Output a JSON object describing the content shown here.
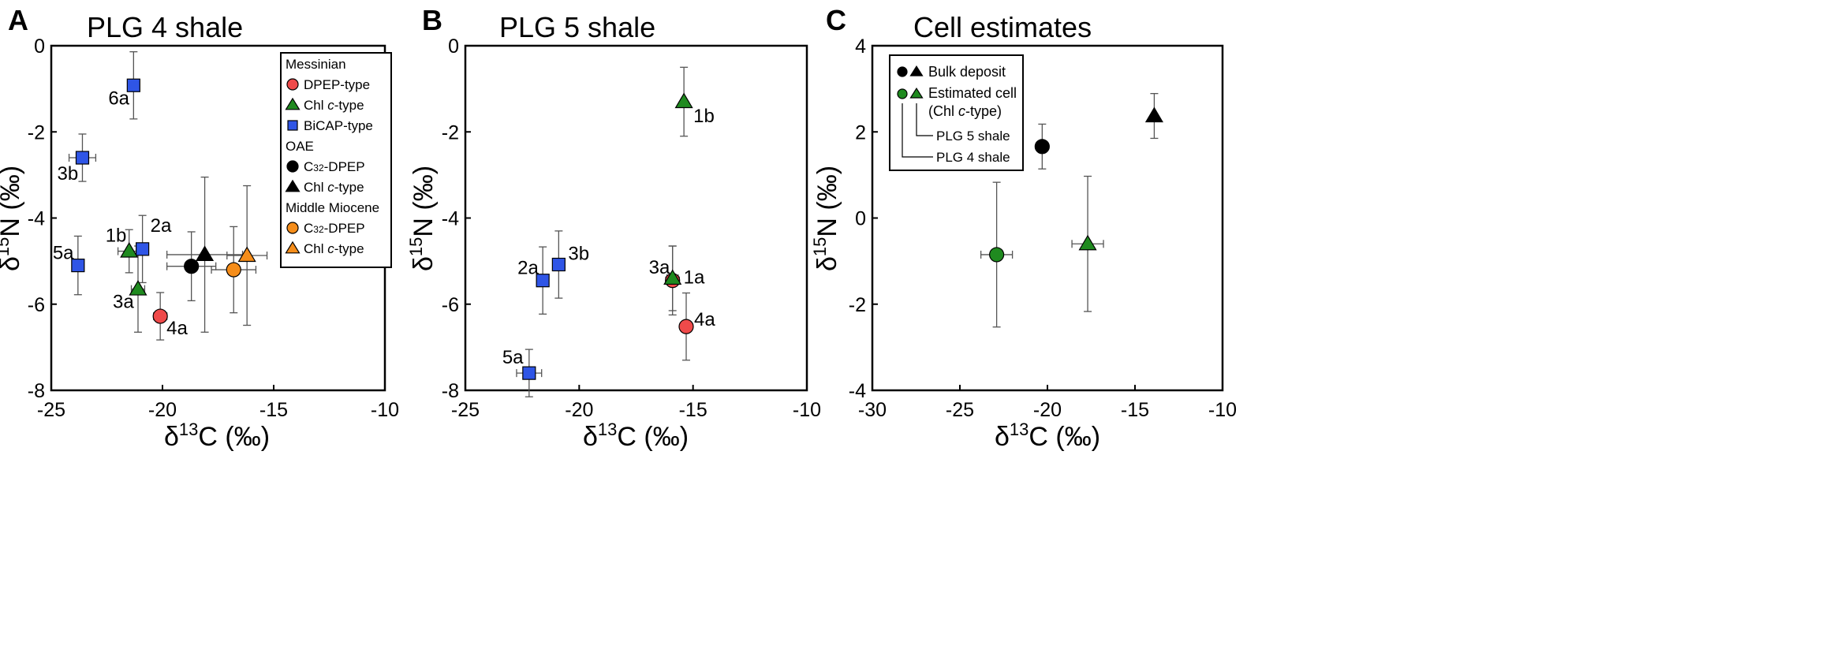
{
  "colors": {
    "red": "#ef4a4a",
    "green": "#1f8a1f",
    "blue": "#2f55e6",
    "black": "#000000",
    "orange": "#f58d1a",
    "errorbar": "#555555"
  },
  "chart_data": [
    {
      "panel": "A",
      "type": "scatter",
      "title": "PLG 4 shale",
      "xlabel": "δ13C (‰)",
      "ylabel": "δ15N (‰)",
      "xlim": [
        -25,
        -10
      ],
      "ylim": [
        -8,
        0
      ],
      "xticks": [
        -25,
        -20,
        -15,
        -10
      ],
      "yticks": [
        0,
        -2,
        -4,
        -6,
        -8
      ],
      "xtick_labels": [
        "-25",
        "-20",
        "-15",
        "-10"
      ],
      "ytick_labels": [
        "0",
        "-2",
        "-4",
        "-6",
        "-8"
      ],
      "points": [
        {
          "label": "6a",
          "group": "Messinian",
          "type": "BiCAP-type",
          "x": -21.3,
          "y": -0.92,
          "xerr": 0.0,
          "yerr": 0.78,
          "marker": "square",
          "color": "blue"
        },
        {
          "label": "3b",
          "group": "Messinian",
          "type": "BiCAP-type",
          "x": -23.6,
          "y": -2.6,
          "xerr": 0.6,
          "yerr": 0.55,
          "marker": "square",
          "color": "blue"
        },
        {
          "label": "5a",
          "group": "Messinian",
          "type": "BiCAP-type",
          "x": -23.8,
          "y": -5.1,
          "xerr": 0.0,
          "yerr": 0.68,
          "marker": "square",
          "color": "blue"
        },
        {
          "label": "2a",
          "group": "Messinian",
          "type": "BiCAP-type",
          "x": -20.9,
          "y": -4.72,
          "xerr": 0.0,
          "yerr": 0.78,
          "marker": "square",
          "color": "blue"
        },
        {
          "label": "1b",
          "group": "Messinian",
          "type": "Chl c-type",
          "x": -21.5,
          "y": -4.77,
          "xerr": 0.5,
          "yerr": 0.5,
          "marker": "triangle",
          "color": "green"
        },
        {
          "label": "3a",
          "group": "Messinian",
          "type": "Chl c-type",
          "x": -21.1,
          "y": -5.65,
          "xerr": 0.3,
          "yerr": 1.0,
          "marker": "triangle",
          "color": "green"
        },
        {
          "label": "4a",
          "group": "Messinian",
          "type": "DPEP-type",
          "x": -20.1,
          "y": -6.28,
          "xerr": 0.3,
          "yerr": 0.55,
          "marker": "circle",
          "color": "red"
        },
        {
          "label": "",
          "group": "OAE",
          "type": "C32-DPEP",
          "x": -18.7,
          "y": -5.12,
          "xerr": 1.1,
          "yerr": 0.8,
          "marker": "circle",
          "color": "black"
        },
        {
          "label": "",
          "group": "OAE",
          "type": "Chl c-type",
          "x": -18.1,
          "y": -4.85,
          "xerr": 1.7,
          "yerr": 1.8,
          "marker": "triangle",
          "color": "black"
        },
        {
          "label": "",
          "group": "Middle Miocene",
          "type": "C32-DPEP",
          "x": -16.8,
          "y": -5.2,
          "xerr": 1.0,
          "yerr": 1.0,
          "marker": "circle",
          "color": "orange"
        },
        {
          "label": "",
          "group": "Middle Miocene",
          "type": "Chl c-type",
          "x": -16.2,
          "y": -4.87,
          "xerr": 0.9,
          "yerr": 1.62,
          "marker": "triangle",
          "color": "orange"
        }
      ],
      "legend": {
        "position": "top-right",
        "entries": [
          {
            "kind": "header",
            "text": "Messinian"
          },
          {
            "kind": "item",
            "marker": "circle",
            "color": "red",
            "text": "DPEP-type"
          },
          {
            "kind": "item",
            "marker": "triangle",
            "color": "green",
            "pre": "Chl ",
            "italic": "c",
            "post": "-type"
          },
          {
            "kind": "item",
            "marker": "square",
            "color": "blue",
            "text": "BiCAP-type"
          },
          {
            "kind": "header",
            "text": "OAE"
          },
          {
            "kind": "item",
            "marker": "circle",
            "color": "black",
            "pre": "C",
            "sub": "32",
            "post": "-DPEP"
          },
          {
            "kind": "item",
            "marker": "triangle",
            "color": "black",
            "pre": "Chl ",
            "italic": "c",
            "post": "-type"
          },
          {
            "kind": "header",
            "text": "Middle Miocene"
          },
          {
            "kind": "item",
            "marker": "circle",
            "color": "orange",
            "pre": "C",
            "sub": "32",
            "post": "-DPEP"
          },
          {
            "kind": "item",
            "marker": "triangle",
            "color": "orange",
            "pre": "Chl ",
            "italic": "c",
            "post": "-type"
          }
        ]
      }
    },
    {
      "panel": "B",
      "type": "scatter",
      "title": "PLG 5 shale",
      "xlabel": "δ13C (‰)",
      "ylabel": "δ15N (‰)",
      "xlim": [
        -25,
        -10
      ],
      "ylim": [
        -8,
        0
      ],
      "xticks": [
        -25,
        -20,
        -15,
        -10
      ],
      "yticks": [
        0,
        -2,
        -4,
        -6,
        -8
      ],
      "xtick_labels": [
        "-25",
        "-20",
        "-15",
        "-10"
      ],
      "ytick_labels": [
        "0",
        "-2",
        "-4",
        "-6",
        "-8"
      ],
      "points": [
        {
          "label": "1b",
          "group": "Messinian",
          "type": "Chl c-type",
          "x": -15.4,
          "y": -1.3,
          "xerr": 0.0,
          "yerr": 0.8,
          "marker": "triangle",
          "color": "green"
        },
        {
          "label": "3b",
          "group": "Messinian",
          "type": "BiCAP-type",
          "x": -20.9,
          "y": -5.08,
          "xerr": 0.0,
          "yerr": 0.78,
          "marker": "square",
          "color": "blue"
        },
        {
          "label": "2a",
          "group": "Messinian",
          "type": "BiCAP-type",
          "x": -21.6,
          "y": -5.45,
          "xerr": 0.0,
          "yerr": 0.78,
          "marker": "square",
          "color": "blue"
        },
        {
          "label": "1a",
          "group": "Messinian",
          "type": "DPEP-type",
          "x": -15.9,
          "y": -5.45,
          "xerr": 0.3,
          "yerr": 0.8,
          "marker": "circle",
          "color": "red"
        },
        {
          "label": "3a",
          "group": "Messinian",
          "type": "Chl c-type",
          "x": -15.9,
          "y": -5.4,
          "xerr": 0.25,
          "yerr": 0.75,
          "marker": "triangle",
          "color": "green"
        },
        {
          "label": "4a",
          "group": "Messinian",
          "type": "DPEP-type",
          "x": -15.3,
          "y": -6.52,
          "xerr": 0.0,
          "yerr": 0.78,
          "marker": "circle",
          "color": "red"
        },
        {
          "label": "5a",
          "group": "Messinian",
          "type": "BiCAP-type",
          "x": -22.2,
          "y": -7.6,
          "xerr": 0.55,
          "yerr": 0.55,
          "marker": "square",
          "color": "blue"
        }
      ]
    },
    {
      "panel": "C",
      "type": "scatter",
      "title": "Cell estimates",
      "xlabel": "δ13C (‰)",
      "ylabel": "δ15N (‰)",
      "xlim": [
        -30,
        -10
      ],
      "ylim": [
        -4,
        4
      ],
      "xticks": [
        -30,
        -25,
        -20,
        -15,
        -10
      ],
      "yticks": [
        4,
        2,
        0,
        -2,
        -4
      ],
      "xtick_labels": [
        "-30",
        "-25",
        "-20",
        "-15",
        "-10"
      ],
      "ytick_labels": [
        "4",
        "2",
        "0",
        "-2",
        "-4"
      ],
      "points": [
        {
          "label": "",
          "series": "Bulk deposit",
          "sample": "PLG 4 shale",
          "x": -20.3,
          "y": 1.66,
          "xerr": 0.0,
          "yerr": 0.52,
          "marker": "circle",
          "color": "black"
        },
        {
          "label": "",
          "series": "Bulk deposit",
          "sample": "PLG 5 shale",
          "x": -13.9,
          "y": 2.37,
          "xerr": 0.0,
          "yerr": 0.52,
          "marker": "triangle",
          "color": "black"
        },
        {
          "label": "",
          "series": "Estimated cell (Chl c-type)",
          "sample": "PLG 4 shale",
          "x": -22.9,
          "y": -0.85,
          "xerr": 0.9,
          "yerr": 1.68,
          "marker": "circle",
          "color": "green"
        },
        {
          "label": "",
          "series": "Estimated cell (Chl c-type)",
          "sample": "PLG 5 shale",
          "x": -17.7,
          "y": -0.6,
          "xerr": 0.9,
          "yerr": 1.57,
          "marker": "triangle",
          "color": "green"
        }
      ],
      "legend": {
        "position": "top-left",
        "bulk": "Bulk deposit",
        "estimated_line1": "Estimated cell",
        "estimated_line2_pre": "(Chl ",
        "estimated_line2_italic": "c",
        "estimated_line2_post": "-type)",
        "plg5": "PLG 5 shale",
        "plg4": "PLG 4 shale"
      }
    }
  ]
}
